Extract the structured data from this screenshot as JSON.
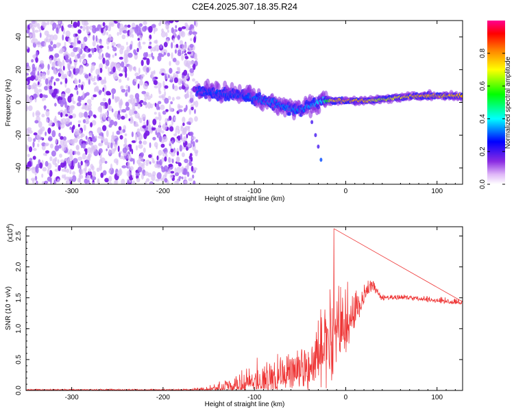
{
  "title": "C2E4.2025.307.18.35.R24",
  "colors": {
    "snr_line": "#ee3333",
    "scatter_bg": "#8a3cf0",
    "axis": "#000000"
  },
  "chart_data": [
    {
      "type": "heatmap",
      "xlabel": "Height of straight line (km)",
      "ylabel": "Frequency (Hz)",
      "xlim": [
        -350,
        128
      ],
      "ylim": [
        -50,
        50
      ],
      "xticks": [
        "-300",
        "-200",
        "-100",
        "0",
        "100"
      ],
      "xtick_values": [
        -300,
        -200,
        -100,
        0,
        100
      ],
      "yticks": [
        "-40",
        "-20",
        "0",
        "20",
        "40"
      ],
      "ytick_values": [
        -40,
        -20,
        0,
        20,
        40
      ],
      "colorbar": {
        "label": "Normalized spectral amplitude",
        "range": [
          0,
          1
        ],
        "ticks": [
          "0.0",
          "0.2",
          "0.4",
          "0.6",
          "0.8"
        ],
        "tick_values": [
          0.0,
          0.2,
          0.4,
          0.6,
          0.8
        ],
        "colormap": "rainbow (white-violet-blue-cyan-green-yellow-red-magenta)"
      },
      "noise_region": {
        "x_range": [
          -350,
          -163
        ],
        "y_range": [
          -50,
          50
        ],
        "amplitude": 0.15
      },
      "ridge": [
        {
          "x": -163,
          "y": 7,
          "amp": 0.35
        },
        {
          "x": -150,
          "y": 6,
          "amp": 0.35
        },
        {
          "x": -130,
          "y": 5,
          "amp": 0.35
        },
        {
          "x": -110,
          "y": 4,
          "amp": 0.35
        },
        {
          "x": -95,
          "y": 2,
          "amp": 0.38
        },
        {
          "x": -80,
          "y": 0,
          "amp": 0.38
        },
        {
          "x": -65,
          "y": -3,
          "amp": 0.38
        },
        {
          "x": -50,
          "y": -5,
          "amp": 0.38
        },
        {
          "x": -40,
          "y": -2,
          "amp": 0.4
        },
        {
          "x": -25,
          "y": 1,
          "amp": 0.45
        },
        {
          "x": -15,
          "y": 1,
          "amp": 0.85
        },
        {
          "x": 0,
          "y": 1,
          "amp": 0.9
        },
        {
          "x": 20,
          "y": 1,
          "amp": 0.9
        },
        {
          "x": 40,
          "y": 2,
          "amp": 0.75
        },
        {
          "x": 60,
          "y": 3,
          "amp": 0.85
        },
        {
          "x": 80,
          "y": 4,
          "amp": 0.9
        },
        {
          "x": 100,
          "y": 4,
          "amp": 0.88
        },
        {
          "x": 128,
          "y": 4,
          "amp": 0.9
        }
      ],
      "faint_trail": [
        {
          "x": -37,
          "y": -12,
          "amp": 0.1
        },
        {
          "x": -33,
          "y": -20,
          "amp": 0.1
        },
        {
          "x": -30,
          "y": -27,
          "amp": 0.1
        },
        {
          "x": -27,
          "y": -35,
          "amp": 0.2
        }
      ]
    },
    {
      "type": "line",
      "xlabel": "Height of straight line (km)",
      "ylabel": "SNR (10 * v/v)",
      "y_multiplier": "(x10",
      "y_multiplier_exponent": "4",
      "y_multiplier_close": ")",
      "xlim": [
        -350,
        128
      ],
      "ylim": [
        0,
        2.65
      ],
      "xticks": [
        "-300",
        "-200",
        "-100",
        "0",
        "100"
      ],
      "xtick_values": [
        -300,
        -200,
        -100,
        0,
        100
      ],
      "yticks": [
        "0.0",
        "0.5",
        "1.0",
        "1.5",
        "2.0",
        "2.5"
      ],
      "ytick_values": [
        0.0,
        0.5,
        1.0,
        1.5,
        2.0,
        2.5
      ],
      "series": [
        {
          "envelope": [
            {
              "x": -350,
              "base": 0.01,
              "amp": 0.01
            },
            {
              "x": -170,
              "base": 0.01,
              "amp": 0.01
            },
            {
              "x": -150,
              "base": 0.02,
              "amp": 0.05
            },
            {
              "x": -120,
              "base": 0.06,
              "amp": 0.15
            },
            {
              "x": -100,
              "base": 0.12,
              "amp": 0.3
            },
            {
              "x": -80,
              "base": 0.15,
              "amp": 0.3
            },
            {
              "x": -60,
              "base": 0.25,
              "amp": 0.45
            },
            {
              "x": -40,
              "base": 0.4,
              "amp": 0.6
            },
            {
              "x": -25,
              "base": 0.6,
              "amp": 0.8
            },
            {
              "x": -12,
              "base": 0.9,
              "amp": 1.0
            },
            {
              "x": 0,
              "base": 1.0,
              "amp": 0.6
            },
            {
              "x": 15,
              "base": 1.35,
              "amp": 0.25
            },
            {
              "x": 25,
              "base": 1.65,
              "amp": 0.12
            },
            {
              "x": 30,
              "base": 1.7,
              "amp": 0.1
            },
            {
              "x": 38,
              "base": 1.5,
              "amp": 0.05
            },
            {
              "x": 70,
              "base": 1.5,
              "amp": 0.05
            },
            {
              "x": 100,
              "base": 1.45,
              "amp": 0.05
            },
            {
              "x": 128,
              "base": 1.42,
              "amp": 0.05
            }
          ],
          "peak": {
            "x": -13,
            "y": 2.62
          }
        }
      ]
    }
  ]
}
